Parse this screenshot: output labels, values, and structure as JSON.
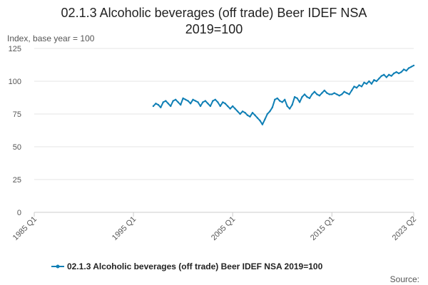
{
  "page": {
    "title_line1": "02.1.3 Alcoholic beverages (off trade) Beer IDEF NSA",
    "title_line2": "2019=100",
    "ylabel": "Index, base year = 100",
    "legend_label": "02.1.3 Alcoholic beverages (off trade) Beer IDEF NSA 2019=100",
    "source_label": "Source:"
  },
  "colors": {
    "series": "#0f7fb5",
    "grid": "#e6e6e6",
    "axis": "#cccccc"
  },
  "chart_data": {
    "type": "line",
    "title": "02.1.3 Alcoholic beverages (off trade) Beer IDEF NSA 2019=100",
    "ylabel": "Index, base year = 100",
    "xlim": [
      1985.0,
      2023.25
    ],
    "ylim": [
      0,
      125
    ],
    "y_ticks": [
      0,
      25,
      50,
      75,
      100,
      125
    ],
    "x_ticks": [
      {
        "label": "1985 Q1",
        "x": 1985.0
      },
      {
        "label": "1995 Q1",
        "x": 1995.0
      },
      {
        "label": "2005 Q1",
        "x": 2005.0
      },
      {
        "label": "2015 Q1",
        "x": 2015.0
      },
      {
        "label": "2023 Q2",
        "x": 2023.25
      }
    ],
    "grid": true,
    "legend_position": "bottom",
    "series": [
      {
        "name": "02.1.3 Alcoholic beverages (off trade) Beer IDEF NSA 2019=100",
        "x": [
          1997.0,
          1997.25,
          1997.5,
          1997.75,
          1998.0,
          1998.25,
          1998.5,
          1998.75,
          1999.0,
          1999.25,
          1999.5,
          1999.75,
          2000.0,
          2000.25,
          2000.5,
          2000.75,
          2001.0,
          2001.25,
          2001.5,
          2001.75,
          2002.0,
          2002.25,
          2002.5,
          2002.75,
          2003.0,
          2003.25,
          2003.5,
          2003.75,
          2004.0,
          2004.25,
          2004.5,
          2004.75,
          2005.0,
          2005.25,
          2005.5,
          2005.75,
          2006.0,
          2006.25,
          2006.5,
          2006.75,
          2007.0,
          2007.25,
          2007.5,
          2007.75,
          2008.0,
          2008.25,
          2008.5,
          2008.75,
          2009.0,
          2009.25,
          2009.5,
          2009.75,
          2010.0,
          2010.25,
          2010.5,
          2010.75,
          2011.0,
          2011.25,
          2011.5,
          2011.75,
          2012.0,
          2012.25,
          2012.5,
          2012.75,
          2013.0,
          2013.25,
          2013.5,
          2013.75,
          2014.0,
          2014.25,
          2014.5,
          2014.75,
          2015.0,
          2015.25,
          2015.5,
          2015.75,
          2016.0,
          2016.25,
          2016.5,
          2016.75,
          2017.0,
          2017.25,
          2017.5,
          2017.75,
          2018.0,
          2018.25,
          2018.5,
          2018.75,
          2019.0,
          2019.25,
          2019.5,
          2019.75,
          2020.0,
          2020.25,
          2020.5,
          2020.75,
          2021.0,
          2021.25,
          2021.5,
          2021.75,
          2022.0,
          2022.25,
          2022.5,
          2022.75,
          2023.0,
          2023.25
        ],
        "values": [
          81,
          83,
          82,
          80,
          84,
          85,
          83,
          81,
          85,
          86,
          84,
          82,
          87,
          86,
          85,
          83,
          86,
          85,
          84,
          81,
          84,
          85,
          83,
          81,
          85,
          86,
          84,
          81,
          84,
          83,
          81,
          79,
          81,
          79,
          77,
          75,
          77,
          76,
          74,
          73,
          76,
          74,
          72,
          70,
          67,
          71,
          75,
          77,
          80,
          86,
          87,
          85,
          84,
          86,
          81,
          79,
          82,
          88,
          87,
          84,
          88,
          90,
          88,
          87,
          90,
          92,
          90,
          89,
          91,
          93,
          91,
          90,
          90,
          91,
          90,
          89,
          90,
          92,
          91,
          90,
          93,
          96,
          95,
          97,
          96,
          99,
          98,
          100,
          98,
          101,
          100,
          102,
          104,
          105,
          103,
          105,
          104,
          106,
          107,
          106,
          107,
          109,
          108,
          110,
          111,
          112
        ]
      }
    ]
  }
}
